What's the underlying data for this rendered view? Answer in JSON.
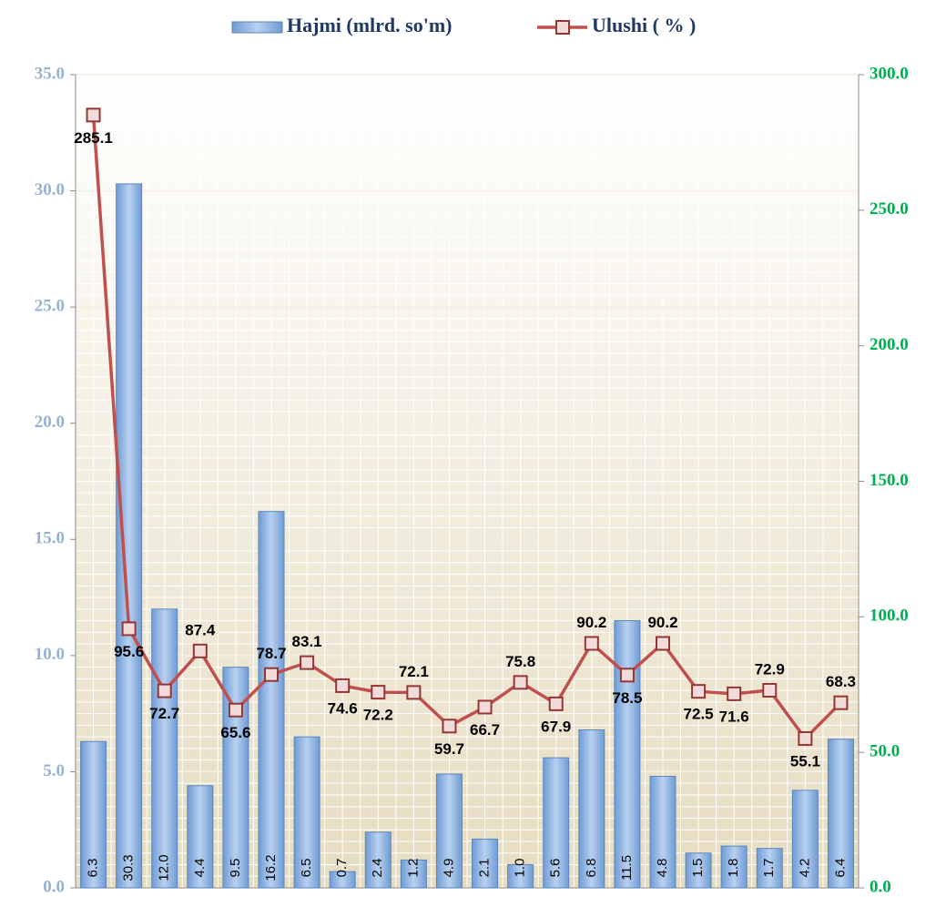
{
  "chart_data": {
    "type": "bar_line",
    "categories": [
      null,
      null,
      null,
      null,
      null,
      null,
      null,
      null,
      null,
      null,
      null,
      null,
      null,
      null,
      null,
      null,
      null,
      null,
      null,
      null,
      null,
      null
    ],
    "series": [
      {
        "name": "Hajmi (mlrd. so'm)",
        "type": "bar",
        "color": "#8db4e2",
        "axis": "y",
        "values": [
          6.3,
          30.3,
          12.0,
          4.4,
          9.5,
          16.2,
          6.5,
          0.7,
          2.4,
          1.2,
          4.9,
          2.1,
          1.0,
          5.6,
          6.8,
          11.5,
          4.8,
          1.5,
          1.8,
          1.7,
          4.2,
          6.4
        ],
        "value_labels": [
          "6.3",
          "30.3",
          "12.0",
          "4.4",
          "9.5",
          "16.2",
          "6.5",
          "0.7",
          "2.4",
          "1.2",
          "4.9",
          "2.1",
          "1.0",
          "5.6",
          "6.8",
          "11.5",
          "4.8",
          "1.5",
          "1.8",
          "1.7",
          "4.2",
          "6.4"
        ]
      },
      {
        "name": "Ulushi ( % )",
        "type": "line",
        "color": "#c0504d",
        "axis": "y2",
        "values": [
          285.1,
          95.6,
          72.7,
          87.4,
          65.6,
          78.7,
          83.1,
          74.6,
          72.2,
          72.1,
          59.7,
          66.7,
          75.8,
          67.9,
          90.2,
          78.5,
          90.2,
          72.5,
          71.6,
          72.9,
          55.1,
          68.3
        ]
      }
    ],
    "ylim": [
      0,
      35
    ],
    "yticks": [
      {
        "value": 0,
        "label": "0.0"
      },
      {
        "value": 5,
        "label": "5.0"
      },
      {
        "value": 10,
        "label": "10.0"
      },
      {
        "value": 15,
        "label": "15.0"
      },
      {
        "value": 20,
        "label": "20.0"
      },
      {
        "value": 25,
        "label": "25.0"
      },
      {
        "value": 30,
        "label": "30.0"
      },
      {
        "value": 35,
        "label": "35.0"
      }
    ],
    "y2lim": [
      0,
      300
    ],
    "y2ticks": [
      {
        "value": 0,
        "label": "0.0"
      },
      {
        "value": 50,
        "label": "50.0"
      },
      {
        "value": 100,
        "label": "100.0"
      },
      {
        "value": 150,
        "label": "150.0"
      },
      {
        "value": 200,
        "label": "200.0"
      },
      {
        "value": 250,
        "label": "250.0"
      },
      {
        "value": 300,
        "label": "300.0"
      }
    ],
    "grid": true,
    "legend": "top"
  }
}
